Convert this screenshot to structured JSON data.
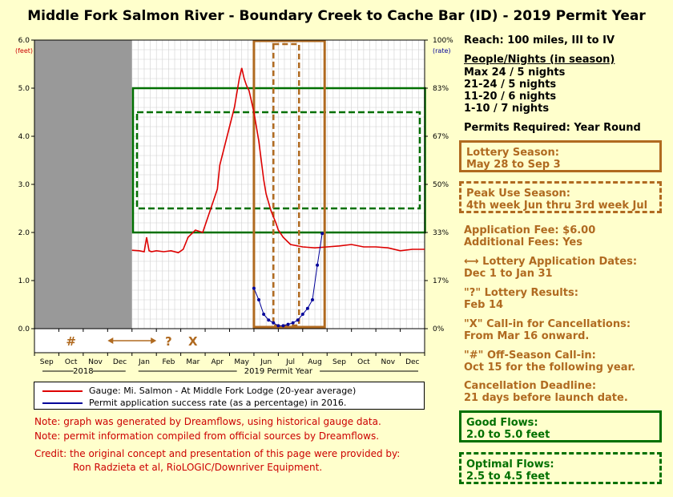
{
  "title": "Middle Fork Salmon River - Boundary Creek to Cache Bar (ID) - 2019 Permit Year",
  "colors": {
    "gauge": "#dd0000",
    "permit": "#000099",
    "lottery": "#b06a20",
    "good": "#007000",
    "background": "#ffffcc",
    "offseason": "#999999"
  },
  "chart_data": {
    "type": "line",
    "left_axis": {
      "label": "(feet)",
      "ticks": [
        "0.0",
        "1.0",
        "2.0",
        "3.0",
        "4.0",
        "5.0",
        "6.0"
      ],
      "range": [
        0,
        6
      ]
    },
    "right_axis": {
      "label": "(rate)",
      "ticks": [
        "0%",
        "17%",
        "33%",
        "50%",
        "67%",
        "83%",
        "100%"
      ]
    },
    "x_months": [
      "Sep",
      "Oct",
      "Nov",
      "Dec",
      "Jan",
      "Feb",
      "Mar",
      "Apr",
      "May",
      "Jun",
      "Jul",
      "Aug",
      "Sep",
      "Oct",
      "Nov",
      "Dec"
    ],
    "x_groups": [
      {
        "label": "2018"
      },
      {
        "label": "2019 Permit Year"
      }
    ],
    "markers": {
      "application": "⟷",
      "results": "?",
      "cancellation": "X",
      "offseason": "#"
    },
    "series": [
      {
        "name": "Gauge: Mi. Salmon - At Middle Fork Lodge (20-year average)",
        "x": [
          4.0,
          4.3,
          4.5,
          4.6,
          4.7,
          4.8,
          5.0,
          5.3,
          5.6,
          5.9,
          6.1,
          6.3,
          6.6,
          6.9,
          7.1,
          7.3,
          7.5,
          7.6,
          7.8,
          8.0,
          8.2,
          8.4,
          8.5,
          8.6,
          8.7,
          8.8,
          9.0,
          9.2,
          9.3,
          9.4,
          9.5,
          9.7,
          9.9,
          10.0,
          10.2,
          10.5,
          11.0,
          11.5,
          12.0,
          12.5,
          13.0,
          13.5,
          14.0,
          14.5,
          15.0,
          15.5,
          16.0
        ],
        "values": [
          1.63,
          1.62,
          1.6,
          1.9,
          1.62,
          1.6,
          1.62,
          1.6,
          1.62,
          1.58,
          1.65,
          1.9,
          2.05,
          2.0,
          2.3,
          2.6,
          2.9,
          3.4,
          3.8,
          4.2,
          4.6,
          5.2,
          5.42,
          5.2,
          5.05,
          4.95,
          4.5,
          3.9,
          3.5,
          3.1,
          2.8,
          2.45,
          2.2,
          2.05,
          1.9,
          1.75,
          1.7,
          1.68,
          1.7,
          1.72,
          1.75,
          1.7,
          1.7,
          1.68,
          1.62,
          1.65,
          1.65
        ]
      },
      {
        "name": "Permit application success rate (as a percentage) in 2016.",
        "x": [
          9.0,
          9.2,
          9.4,
          9.6,
          9.8,
          10.0,
          10.2,
          10.4,
          10.6,
          10.8,
          11.0,
          11.2,
          11.4,
          11.6,
          11.8
        ],
        "values": [
          14,
          10,
          5,
          3,
          2,
          1,
          1,
          1.5,
          2,
          3,
          5,
          7,
          10,
          22,
          33
        ]
      }
    ],
    "zones": {
      "off_season_x": [
        0,
        4
      ],
      "lottery_season_x": [
        9.0,
        11.9
      ],
      "peak_use_x": [
        9.8,
        10.85
      ],
      "good_flows_ft": [
        2.0,
        5.0
      ],
      "optimal_flows_ft": [
        2.5,
        4.5
      ]
    }
  },
  "info": {
    "reach": "Reach: 100 miles, III to IV",
    "people_header": "People/Nights (in season)",
    "people": [
      "Max 24 / 5 nights",
      "21-24 / 5 nights",
      "11-20 / 6 nights",
      "1-10 / 7 nights"
    ],
    "permits_required": "Permits Required: Year Round",
    "lottery_title": "Lottery Season:",
    "lottery_dates": "May 28 to Sep 3",
    "peak_title": "Peak Use Season:",
    "peak_dates": "4th week Jun thru 3rd week Jul",
    "app_fee": "Application Fee: $6.00",
    "add_fees": "Additional Fees: Yes",
    "app_dates_title": "Lottery Application Dates:",
    "app_dates_arrow": "⟷",
    "app_dates": "Dec 1 to Jan 31",
    "results_title": "\"?\" Lottery Results:",
    "results_date": "Feb 14",
    "callin_title": "\"X\" Call-in for Cancellations:",
    "callin_date": "From Mar 16 onward.",
    "offseason_title": "\"#\" Off-Season Call-in:",
    "offseason_date": "Oct 15 for the following year.",
    "deadline_title": "Cancellation Deadline:",
    "deadline_date": "21 days before launch date.",
    "good_title": "Good Flows:",
    "good_range": "2.0 to 5.0 feet",
    "optimal_title": "Optimal Flows:",
    "optimal_range": "2.5 to 4.5 feet"
  },
  "notes": [
    "Note: graph was generated by Dreamflows, using historical gauge data.",
    "Note: permit information compiled from official sources by Dreamflows.",
    "Credit: the original concept and presentation of this page were provided by:",
    "Ron Radzieta et al, RioLOGIC/Downriver Equipment."
  ]
}
